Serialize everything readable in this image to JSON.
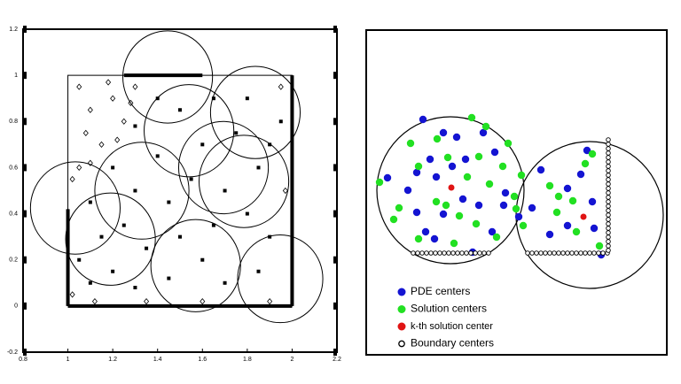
{
  "chart_data": {
    "type": "scatter",
    "xlim": [
      0.8,
      2.2
    ],
    "ylim": [
      -0.2,
      1.2
    ],
    "xticks": [
      0.8,
      1,
      1.2,
      1.4,
      1.6,
      1.8,
      2,
      2.2
    ],
    "yticks": [
      -0.2,
      0,
      0.2,
      0.4,
      0.6,
      0.8,
      1,
      1.2
    ],
    "color": "#000000",
    "circles": {
      "x": [
        1.445,
        1.836,
        1.54,
        1.694,
        1.785,
        1.33,
        1.033,
        1.19,
        1.57,
        1.947
      ],
      "y": [
        0.993,
        0.839,
        0.76,
        0.6,
        0.54,
        0.5,
        0.425,
        0.29,
        0.175,
        0.118
      ],
      "r": [
        0.2,
        0.2,
        0.2,
        0.2,
        0.2,
        0.21,
        0.2,
        0.2,
        0.2,
        0.19
      ]
    },
    "outline": {
      "x": [
        1,
        2,
        2,
        1,
        1
      ],
      "y": [
        0,
        0,
        1,
        1,
        0
      ]
    },
    "boundary": {
      "x": [
        1,
        1,
        null,
        1,
        2,
        null,
        2,
        2,
        null,
        1.25,
        1.6
      ],
      "y": [
        0.42,
        0,
        null,
        0,
        0,
        null,
        0,
        1,
        null,
        1,
        1
      ]
    },
    "series": [
      {
        "marker": "square",
        "x": [
          1.1,
          1.2,
          1.3,
          1.45,
          1.6,
          1.7,
          1.85,
          1.9,
          1.15,
          1.25,
          1.35,
          1.5,
          1.65,
          1.8,
          1.1,
          1.3,
          1.45,
          1.55,
          1.7,
          1.85,
          1.2,
          1.4,
          1.6,
          1.75,
          1.9,
          1.5,
          1.65,
          1.4,
          1.8,
          1.95,
          1.3,
          1.05
        ],
        "y": [
          0.1,
          0.15,
          0.08,
          0.12,
          0.2,
          0.1,
          0.15,
          0.3,
          0.3,
          0.35,
          0.25,
          0.3,
          0.35,
          0.4,
          0.45,
          0.5,
          0.45,
          0.55,
          0.5,
          0.6,
          0.6,
          0.65,
          0.7,
          0.75,
          0.7,
          0.85,
          0.9,
          0.9,
          0.9,
          0.8,
          0.78,
          0.2
        ]
      },
      {
        "marker": "diamond-open",
        "x": [
          1.05,
          1.1,
          1.2,
          1.08,
          1.15,
          1.25,
          1.05,
          1.3,
          1.02,
          1.12,
          1.95,
          1.97,
          1.9,
          1.6,
          1.35,
          1.02,
          1.18,
          1.1,
          1.22,
          1.28
        ],
        "y": [
          0.95,
          0.85,
          0.9,
          0.75,
          0.7,
          0.8,
          0.6,
          0.95,
          0.05,
          0.02,
          0.95,
          0.5,
          0.02,
          0.02,
          0.02,
          0.55,
          0.97,
          0.62,
          0.72,
          0.88
        ]
      }
    ]
  },
  "diagram": {
    "legend": [
      {
        "name": "PDE centers",
        "color": "#1414d2"
      },
      {
        "name": "Solution centers",
        "color": "#22e022"
      },
      {
        "name": "k-th solution center",
        "color": "#e01414"
      },
      {
        "name": "Boundary centers",
        "color": "#000000"
      }
    ]
  }
}
